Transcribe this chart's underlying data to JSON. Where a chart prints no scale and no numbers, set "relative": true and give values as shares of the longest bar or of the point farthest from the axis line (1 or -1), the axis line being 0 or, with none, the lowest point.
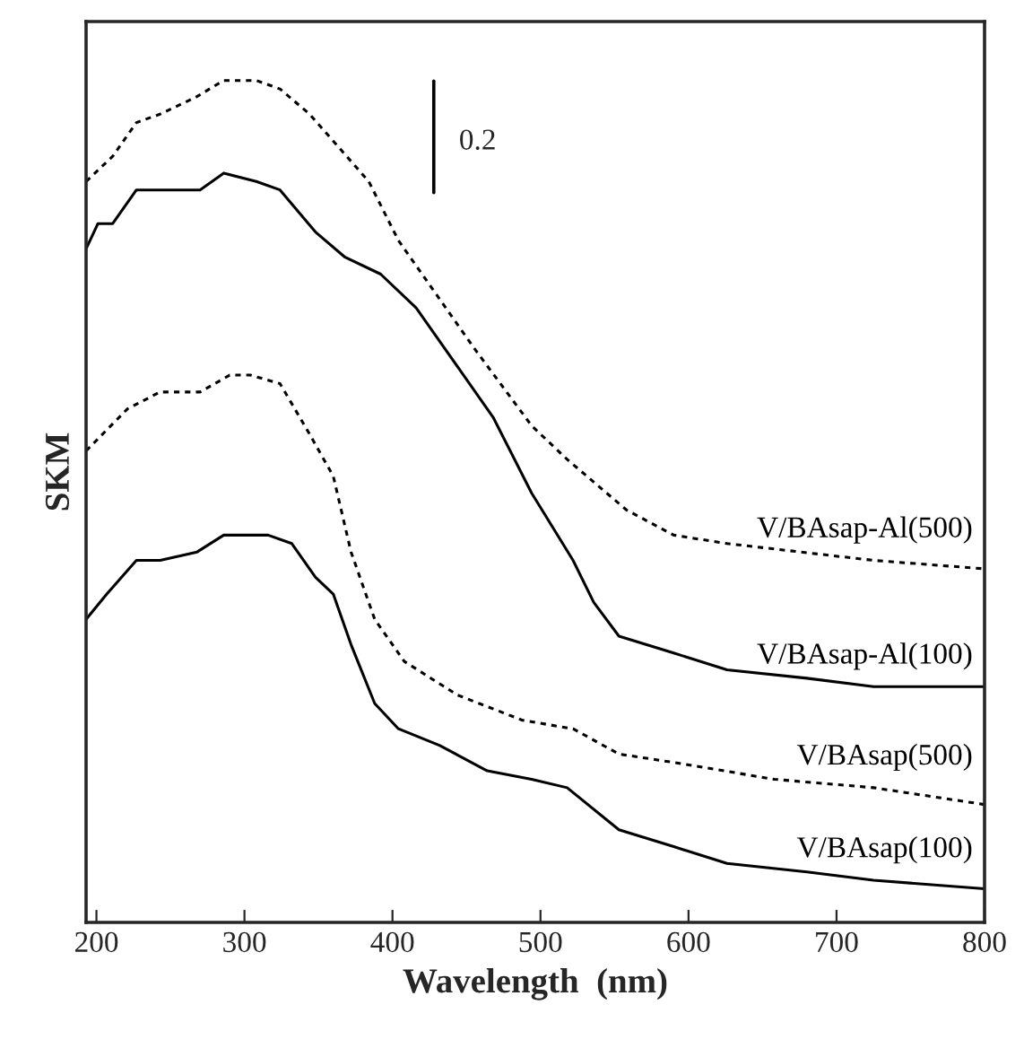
{
  "chart_data": {
    "type": "line",
    "relative": true,
    "xlabel": "Wavelength  (nm)",
    "ylabel": "SKM",
    "xlim": [
      193,
      800
    ],
    "xticks": [
      200,
      300,
      400,
      500,
      600,
      700,
      800
    ],
    "tick_labels": "x",
    "grid": false,
    "legend": false,
    "annotations": [
      "0.2"
    ],
    "series": [
      {
        "name": "V/BAsap-Al(500)",
        "color": "#000000",
        "line_style": "dashed",
        "x": [
          193,
          211,
          227,
          243,
          267,
          286,
          308,
          324,
          344,
          364,
          384,
          404,
          424,
          456,
          494,
          518,
          558,
          590,
          626,
          725,
          800
        ],
        "values": [
          0.88,
          0.91,
          0.95,
          0.96,
          0.98,
          1.0,
          1.0,
          0.99,
          0.96,
          0.92,
          0.88,
          0.81,
          0.76,
          0.68,
          0.59,
          0.55,
          0.49,
          0.46,
          0.45,
          0.43,
          0.42
        ]
      },
      {
        "name": "V/BAsap-Al(100)",
        "color": "#000000",
        "line_style": "solid",
        "x": [
          193,
          201,
          211,
          227,
          247,
          270,
          286,
          308,
          324,
          348,
          368,
          392,
          416,
          440,
          468,
          494,
          522,
          536,
          553,
          590,
          626,
          680,
          725,
          800
        ],
        "values": [
          0.8,
          0.83,
          0.83,
          0.87,
          0.87,
          0.87,
          0.89,
          0.88,
          0.87,
          0.82,
          0.79,
          0.77,
          0.73,
          0.67,
          0.6,
          0.51,
          0.43,
          0.38,
          0.34,
          0.32,
          0.3,
          0.29,
          0.28,
          0.28
        ]
      },
      {
        "name": "V/BAsap(500)",
        "color": "#000000",
        "line_style": "dashed",
        "x": [
          193,
          221,
          243,
          270,
          290,
          304,
          324,
          344,
          360,
          372,
          388,
          408,
          444,
          488,
          522,
          553,
          590,
          658,
          725,
          800
        ],
        "values": [
          0.56,
          0.61,
          0.63,
          0.63,
          0.65,
          0.65,
          0.64,
          0.58,
          0.53,
          0.44,
          0.36,
          0.31,
          0.27,
          0.24,
          0.23,
          0.2,
          0.19,
          0.17,
          0.16,
          0.14
        ]
      },
      {
        "name": "V/BAsap(100)",
        "color": "#000000",
        "line_style": "solid",
        "x": [
          193,
          207,
          227,
          243,
          268,
          286,
          316,
          332,
          348,
          360,
          372,
          388,
          404,
          432,
          464,
          494,
          518,
          553,
          590,
          626,
          680,
          725,
          800
        ],
        "values": [
          0.36,
          0.39,
          0.43,
          0.43,
          0.44,
          0.46,
          0.46,
          0.45,
          0.41,
          0.39,
          0.33,
          0.26,
          0.23,
          0.21,
          0.18,
          0.17,
          0.16,
          0.11,
          0.09,
          0.07,
          0.06,
          0.05,
          0.04
        ]
      }
    ]
  }
}
